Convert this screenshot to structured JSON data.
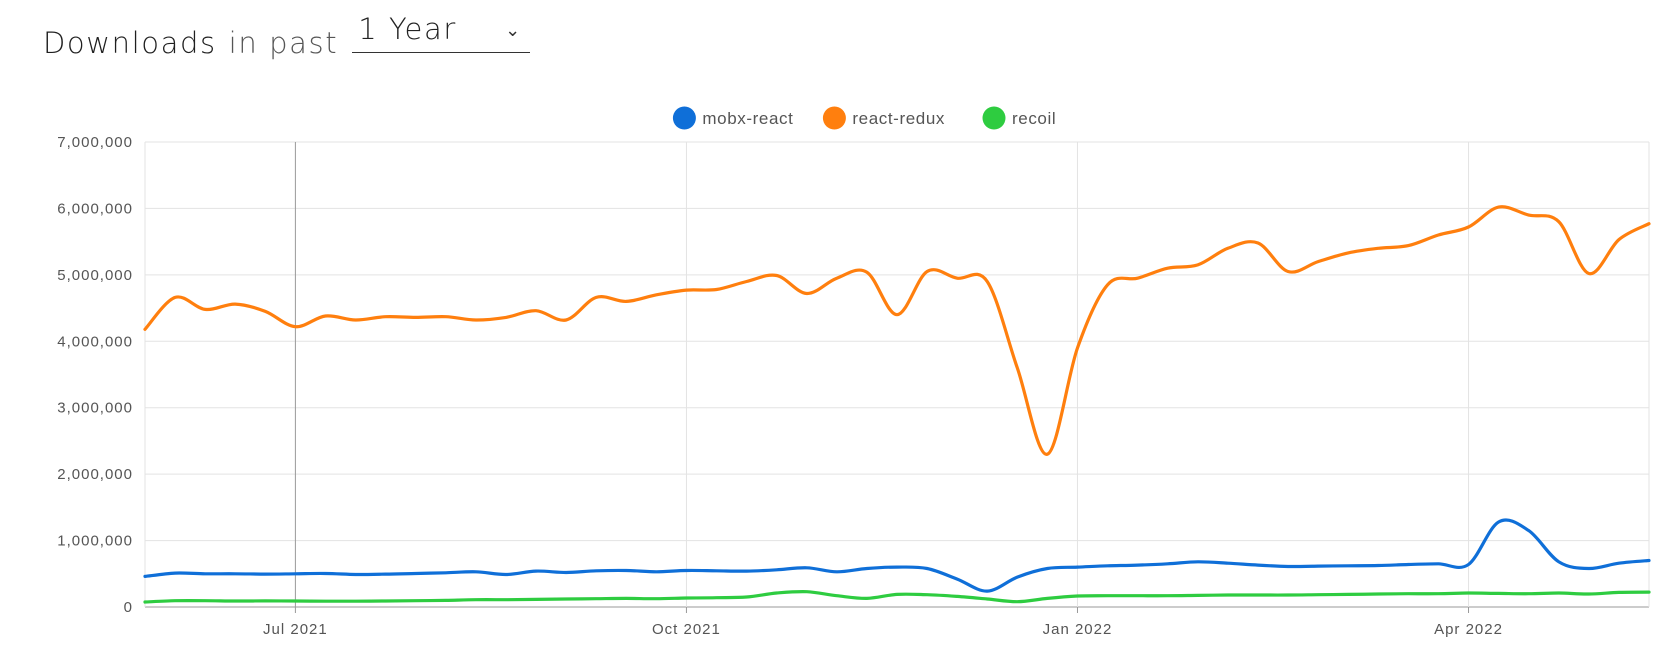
{
  "header": {
    "title": "Downloads",
    "suffix": "in past",
    "period_value": "1 Year",
    "period_icon": "chevron-down-icon"
  },
  "chart_data": {
    "type": "line",
    "title": "",
    "xlabel": "",
    "ylabel": "",
    "ylim": [
      0,
      7000000
    ],
    "y_ticks": [
      0,
      1000000,
      2000000,
      3000000,
      4000000,
      5000000,
      6000000,
      7000000
    ],
    "y_tick_labels": [
      "0",
      "1,000,000",
      "2,000,000",
      "3,000,000",
      "4,000,000",
      "5,000,000",
      "6,000,000",
      "7,000,000"
    ],
    "x_ticks": [
      {
        "label": "Jul 2021",
        "index": 5
      },
      {
        "label": "Oct 2021",
        "index": 18
      },
      {
        "label": "Jan 2022",
        "index": 31
      },
      {
        "label": "Apr 2022",
        "index": 44
      }
    ],
    "x_points": 51,
    "grid": true,
    "legend": "top-center",
    "series": [
      {
        "name": "mobx-react",
        "color": "#0f6fd8",
        "values": [
          460000,
          510000,
          500000,
          500000,
          495000,
          500000,
          505000,
          490000,
          495000,
          505000,
          515000,
          530000,
          490000,
          540000,
          520000,
          545000,
          550000,
          530000,
          550000,
          545000,
          540000,
          560000,
          590000,
          530000,
          580000,
          600000,
          580000,
          420000,
          240000,
          450000,
          580000,
          600000,
          620000,
          630000,
          650000,
          680000,
          660000,
          630000,
          610000,
          615000,
          620000,
          625000,
          640000,
          650000,
          640000,
          1280000,
          1150000,
          680000,
          580000,
          660000,
          700000
        ]
      },
      {
        "name": "react-redux",
        "color": "#ff7f0e",
        "values": [
          4180000,
          4660000,
          4480000,
          4560000,
          4450000,
          4220000,
          4380000,
          4320000,
          4370000,
          4360000,
          4370000,
          4320000,
          4360000,
          4460000,
          4320000,
          4660000,
          4600000,
          4700000,
          4770000,
          4780000,
          4900000,
          4990000,
          4720000,
          4950000,
          5040000,
          4400000,
          5050000,
          4950000,
          4900000,
          3600000,
          2300000,
          3900000,
          4850000,
          4950000,
          5100000,
          5150000,
          5400000,
          5480000,
          5050000,
          5200000,
          5330000,
          5400000,
          5440000,
          5600000,
          5720000,
          6020000,
          5900000,
          5800000,
          5020000,
          5530000,
          5770000
        ]
      },
      {
        "name": "recoil",
        "color": "#2ecc40",
        "values": [
          75000,
          95000,
          95000,
          90000,
          92000,
          90000,
          88000,
          88000,
          90000,
          95000,
          100000,
          110000,
          110000,
          115000,
          120000,
          125000,
          130000,
          125000,
          135000,
          140000,
          150000,
          210000,
          230000,
          170000,
          130000,
          190000,
          185000,
          160000,
          120000,
          80000,
          130000,
          165000,
          170000,
          170000,
          170000,
          175000,
          180000,
          180000,
          180000,
          185000,
          190000,
          195000,
          200000,
          200000,
          210000,
          205000,
          200000,
          210000,
          195000,
          220000,
          225000
        ]
      }
    ]
  }
}
